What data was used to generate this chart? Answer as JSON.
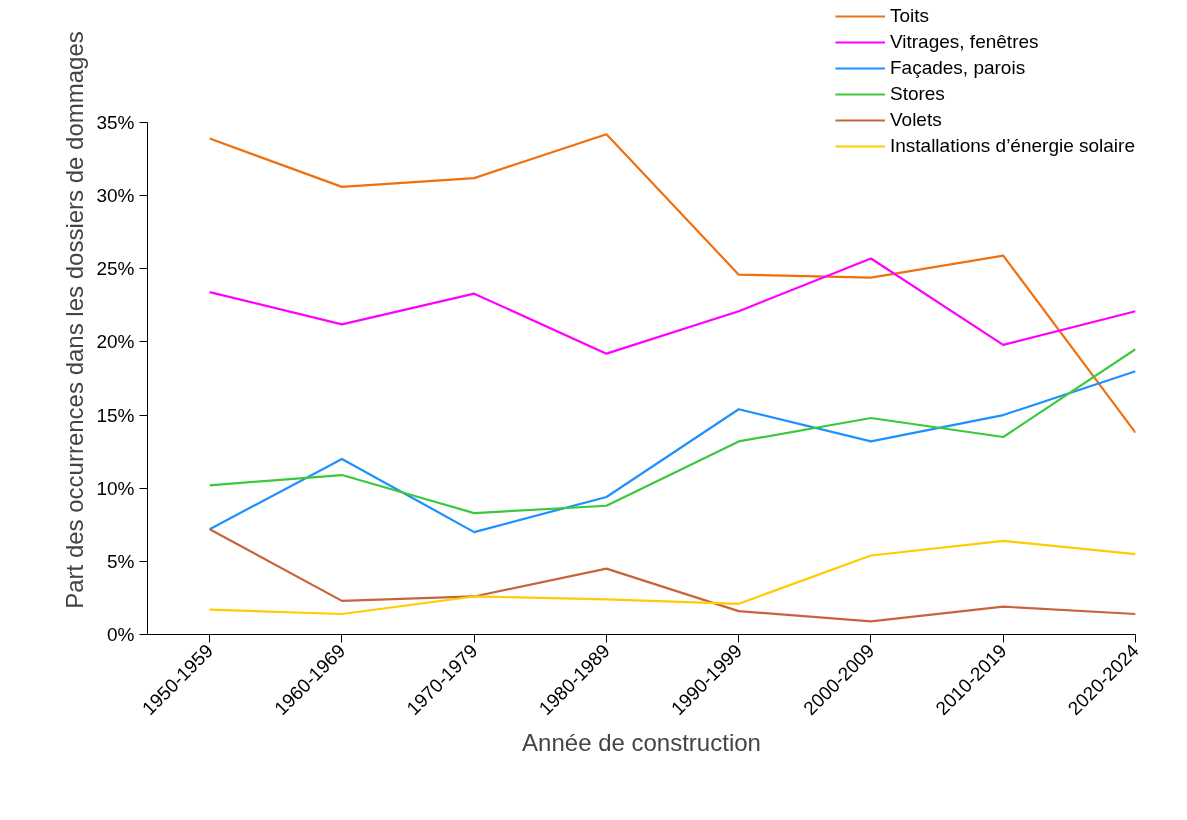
{
  "chart_data": {
    "type": "line",
    "xlabel": "Année de construction",
    "ylabel": "Part des occurrences dans les dossiers de dommages",
    "categories": [
      "1950-1959",
      "1960-1969",
      "1970-1979",
      "1980-1989",
      "1990-1999",
      "2000-2009",
      "2010-2019",
      "2020-2024"
    ],
    "ylim": [
      0,
      35
    ],
    "yticks": [
      {
        "value": 0,
        "label": "0%"
      },
      {
        "value": 5,
        "label": "5%"
      },
      {
        "value": 10,
        "label": "10%"
      },
      {
        "value": 15,
        "label": "15%"
      },
      {
        "value": 20,
        "label": "20%"
      },
      {
        "value": 25,
        "label": "25%"
      },
      {
        "value": 30,
        "label": "30%"
      },
      {
        "value": 35,
        "label": "35%"
      }
    ],
    "grid": false,
    "legend": "top right",
    "marker": "none",
    "line_style": "solid",
    "series": [
      {
        "name": "Toits",
        "color": "#f07010",
        "values": [
          33.9,
          30.6,
          31.2,
          34.2,
          24.6,
          24.4,
          25.9,
          13.8
        ]
      },
      {
        "name": "Vitrages, fenêtres",
        "color": "#ff00ff",
        "values": [
          23.4,
          21.2,
          23.3,
          19.2,
          22.1,
          25.7,
          19.8,
          22.1
        ]
      },
      {
        "name": "Façades, parois",
        "color": "#1e90ff",
        "values": [
          7.2,
          12.0,
          7.0,
          9.4,
          15.4,
          13.2,
          15.0,
          18.0
        ]
      },
      {
        "name": "Stores",
        "color": "#3cc83c",
        "values": [
          10.2,
          10.9,
          8.3,
          8.8,
          13.2,
          14.8,
          13.5,
          19.5
        ]
      },
      {
        "name": "Volets",
        "color": "#c8643c",
        "values": [
          7.2,
          2.3,
          2.6,
          4.5,
          1.6,
          0.9,
          1.9,
          1.4
        ]
      },
      {
        "name": "Installations d’énergie solaire",
        "color": "#ffcc00",
        "values": [
          1.7,
          1.4,
          2.6,
          2.4,
          2.1,
          5.4,
          6.4,
          5.5
        ]
      }
    ]
  }
}
